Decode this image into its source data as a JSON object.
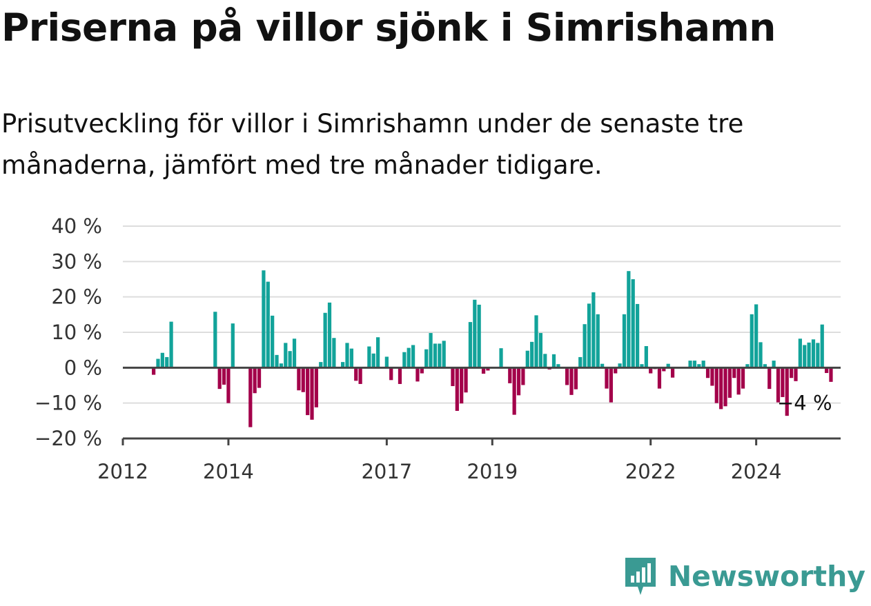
{
  "title": "Priserna på villor sjönk i Simrishamn",
  "subtitle": "Prisutveckling för villor i Simrishamn under de senaste tre månaderna, jämfört med tre månader tidigare.",
  "brand": {
    "name": "Newsworthy",
    "icon": "newsworthy-logo-icon",
    "color": "#3a9a93"
  },
  "colors": {
    "positive": "#12a39a",
    "negative": "#a3004a",
    "grid": "#dddddd",
    "axis": "#444444"
  },
  "chart_data": {
    "type": "bar",
    "xlabel": "",
    "ylabel": "",
    "ylim": [
      -20,
      40
    ],
    "yticks": [
      40,
      30,
      20,
      10,
      0,
      -10,
      -20
    ],
    "ytick_labels": [
      "40 %",
      "30 %",
      "20 %",
      "10 %",
      "0 %",
      "−10 %",
      "−20 %"
    ],
    "xlim": [
      2012.0,
      2025.6
    ],
    "xticks": [
      2012,
      2014,
      2017,
      2019,
      2022,
      2024
    ],
    "xtick_labels": [
      "2012",
      "2014",
      "2017",
      "2019",
      "2022",
      "2024"
    ],
    "grid": true,
    "start": {
      "year": 2012,
      "month": 1
    },
    "values": [
      null,
      null,
      null,
      null,
      null,
      null,
      null,
      -2,
      2.5,
      4.2,
      3,
      13,
      null,
      null,
      null,
      null,
      null,
      null,
      null,
      null,
      null,
      15.8,
      -6,
      -4.8,
      -10,
      12.5,
      null,
      null,
      null,
      -16.8,
      -7.2,
      -5.7,
      27.5,
      24.3,
      14.7,
      3.6,
      1.2,
      7,
      4.7,
      8.2,
      -6.4,
      -6.9,
      -13.4,
      -14.7,
      -11.2,
      1.6,
      15.5,
      18.4,
      8.4,
      null,
      1.6,
      7,
      5.4,
      -3.7,
      -4.6,
      null,
      6,
      4,
      8.6,
      null,
      3.1,
      -3.5,
      null,
      -4.6,
      4.4,
      5.6,
      6.4,
      -3.9,
      -1.6,
      5.2,
      9.8,
      6.8,
      6.8,
      7.6,
      null,
      -5.2,
      -12.2,
      -10.1,
      -7,
      12.9,
      19.2,
      17.8,
      -1.7,
      -0.8,
      null,
      null,
      5.5,
      null,
      -4.4,
      -13.3,
      -7.8,
      -4.9,
      4.8,
      7.3,
      14.8,
      9.8,
      3.9,
      -0.5,
      3.8,
      1,
      null,
      -4.9,
      -7.7,
      -6.1,
      3,
      12.3,
      18.1,
      21.3,
      15.1,
      1.1,
      -5.9,
      -9.8,
      -1.6,
      1.2,
      15.1,
      27.3,
      25,
      18,
      1,
      6.1,
      -1.6,
      -0.4,
      -5.9,
      -1,
      1.1,
      -2.8,
      null,
      null,
      null,
      2,
      2,
      1,
      2,
      -2.9,
      -5.1,
      -10,
      -11.7,
      -10.9,
      -8.5,
      -2.9,
      -7.6,
      -5.9,
      1,
      15.1,
      17.9,
      7.2,
      1,
      -6,
      2,
      -9.8,
      -8.3,
      -13.6,
      -2.9,
      -3.8,
      8.2,
      6.4,
      7.1,
      8,
      7,
      12.2,
      -1.5,
      -4
    ],
    "last_value_label": "−4 %"
  }
}
